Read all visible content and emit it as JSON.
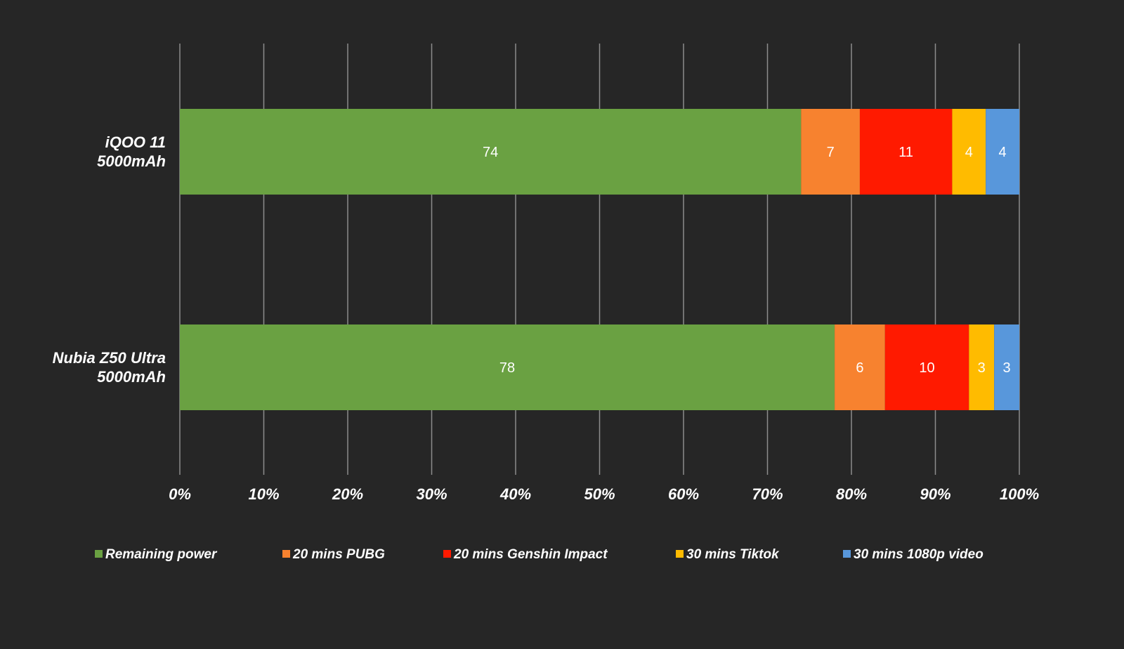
{
  "chart_data": {
    "type": "bar",
    "orientation": "horizontal",
    "stacked": "percent",
    "categories": [
      "iQOO 11\n5000mAh",
      "Nubia Z50 Ultra\n5000mAh"
    ],
    "series": [
      {
        "name": "Remaining power",
        "color": "#6aa142",
        "values": [
          74,
          78
        ]
      },
      {
        "name": "20 mins PUBG",
        "color": "#f7822f",
        "values": [
          7,
          6
        ]
      },
      {
        "name": "20 mins Genshin Impact",
        "color": "#ff1a00",
        "values": [
          11,
          10
        ]
      },
      {
        "name": "30 mins Tiktok",
        "color": "#ffbb00",
        "values": [
          4,
          3
        ]
      },
      {
        "name": "30 mins 1080p video",
        "color": "#5897db",
        "values": [
          4,
          3
        ]
      }
    ],
    "xlim": [
      0,
      100
    ],
    "x_ticks": [
      "0%",
      "10%",
      "20%",
      "30%",
      "40%",
      "50%",
      "60%",
      "70%",
      "80%",
      "90%",
      "100%"
    ],
    "grid": "vertical",
    "legend": "bottom",
    "title": "",
    "xlabel": "",
    "ylabel": ""
  }
}
